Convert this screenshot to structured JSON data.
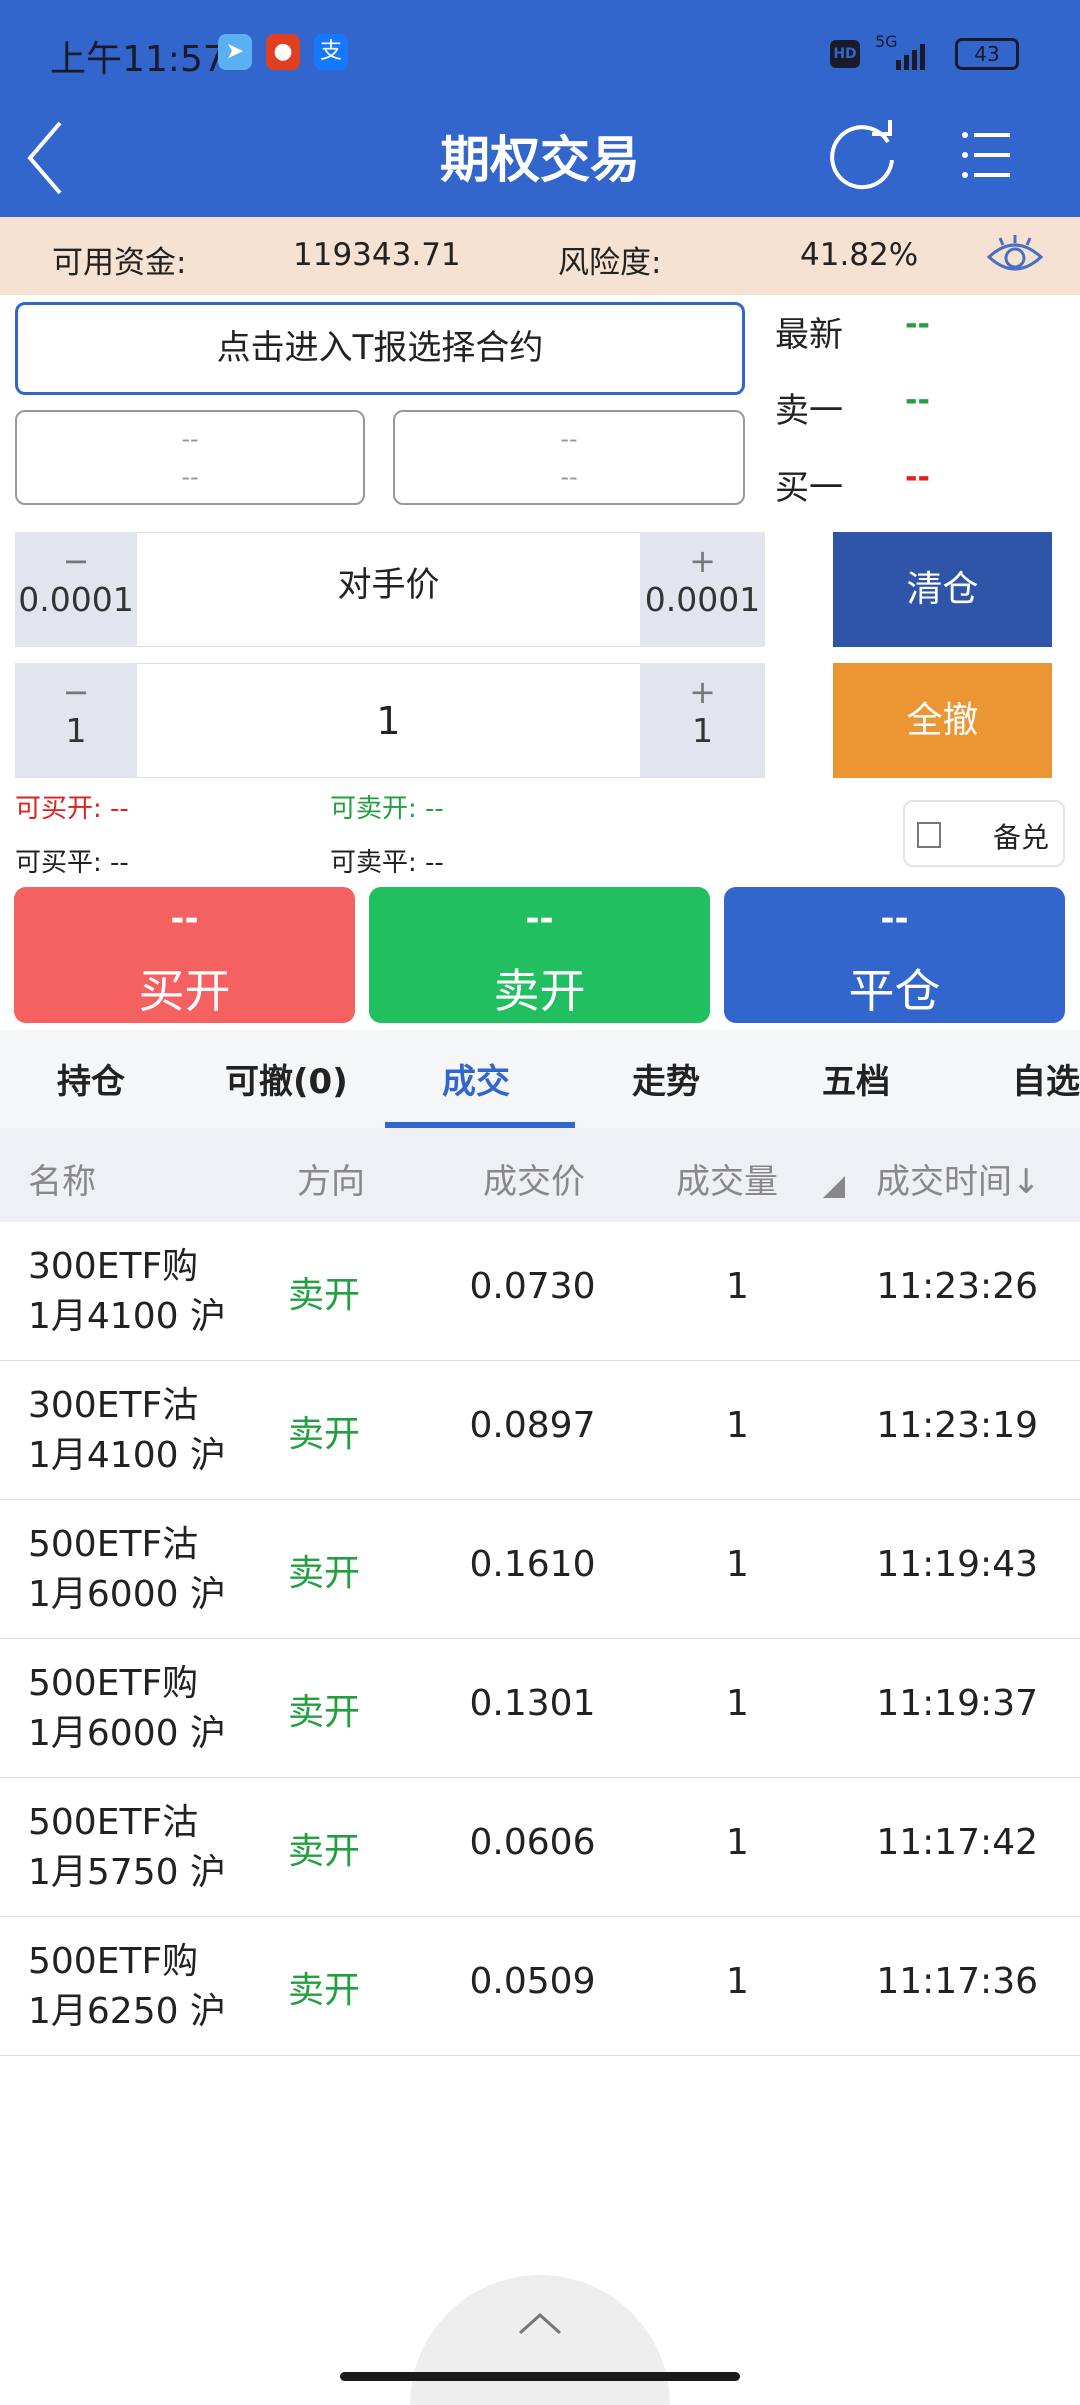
{
  "status_bar": {
    "time": "上午11:57",
    "network": "5G",
    "hd": "HD",
    "battery": "43"
  },
  "header": {
    "title": "期权交易"
  },
  "funds": {
    "available_label": "可用资金:",
    "available_value": "119343.71",
    "risk_label": "风险度:",
    "risk_value": "41.82%"
  },
  "contract": {
    "select_label": "点击进入T报选择合约",
    "box1": [
      "--",
      "--"
    ],
    "box2": [
      "--",
      "--"
    ]
  },
  "quotes": [
    {
      "label": "最新",
      "value": "--",
      "color": "#22a040"
    },
    {
      "label": "卖一",
      "value": "--",
      "color": "#22a040"
    },
    {
      "label": "买一",
      "value": "--",
      "color": "#e02020"
    }
  ],
  "price": {
    "minus_sym": "−",
    "minus_step": "0.0001",
    "value": "对手价",
    "plus_sym": "+",
    "plus_step": "0.0001"
  },
  "qty": {
    "minus_sym": "−",
    "minus_step": "1",
    "value": "1",
    "plus_sym": "+",
    "plus_step": "1"
  },
  "buttons": {
    "clear": "清仓",
    "cancel_all": "全撤",
    "covered": "备兑"
  },
  "avail": {
    "buy_open": "可买开: --",
    "sell_open": "可卖开: --",
    "buy_close": "可买平: --",
    "sell_close": "可卖平: --"
  },
  "actions": [
    {
      "price": "--",
      "label": "买开",
      "color": "#f56060"
    },
    {
      "price": "--",
      "label": "卖开",
      "color": "#22bf60"
    },
    {
      "price": "--",
      "label": "平仓",
      "color": "#3366cc"
    }
  ],
  "tabs": [
    {
      "label": "持仓"
    },
    {
      "label": "可撤(0)"
    },
    {
      "label": "成交",
      "active": true
    },
    {
      "label": "走势"
    },
    {
      "label": "五档"
    },
    {
      "label": "自选"
    }
  ],
  "table": {
    "headers": [
      "名称",
      "方向",
      "成交价",
      "成交量",
      "成交时间↓"
    ],
    "rows": [
      {
        "name1": "300ETF购",
        "name2": "1月4100 沪",
        "dir": "卖开",
        "price": "0.0730",
        "qty": "1",
        "time": "11:23:26"
      },
      {
        "name1": "300ETF沽",
        "name2": "1月4100 沪",
        "dir": "卖开",
        "price": "0.0897",
        "qty": "1",
        "time": "11:23:19"
      },
      {
        "name1": "500ETF沽",
        "name2": "1月6000 沪",
        "dir": "卖开",
        "price": "0.1610",
        "qty": "1",
        "time": "11:19:43"
      },
      {
        "name1": "500ETF购",
        "name2": "1月6000 沪",
        "dir": "卖开",
        "price": "0.1301",
        "qty": "1",
        "time": "11:19:37"
      },
      {
        "name1": "500ETF沽",
        "name2": "1月5750 沪",
        "dir": "卖开",
        "price": "0.0606",
        "qty": "1",
        "time": "11:17:42"
      },
      {
        "name1": "500ETF购",
        "name2": "1月6250 沪",
        "dir": "卖开",
        "price": "0.0509",
        "qty": "1",
        "time": "11:17:36"
      }
    ]
  }
}
